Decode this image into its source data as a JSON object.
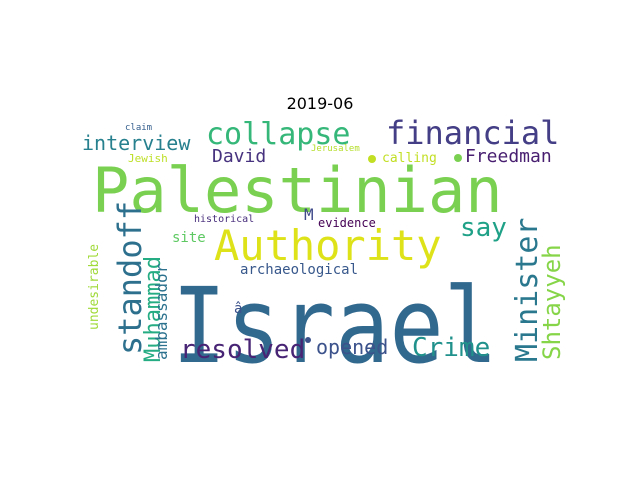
{
  "title": "2019-06",
  "words": [
    {
      "text": "Israel",
      "color": "#31688e"
    },
    {
      "text": "Palestinian",
      "color": "#7ad151"
    },
    {
      "text": "Authority",
      "color": "#dde318"
    },
    {
      "text": "financial",
      "color": "#433e85"
    },
    {
      "text": "collapse",
      "color": "#35b779"
    },
    {
      "text": "standoff",
      "color": "#2d708e"
    },
    {
      "text": "Minister",
      "color": "#2a788e"
    },
    {
      "text": "Shtayyeh",
      "color": "#86d549"
    },
    {
      "text": "Muhammad",
      "color": "#25ac82"
    },
    {
      "text": "resolved",
      "color": "#482475"
    },
    {
      "text": "Crime",
      "color": "#21918c"
    },
    {
      "text": "opened",
      "color": "#3b528b"
    },
    {
      "text": "say",
      "color": "#1fa187"
    },
    {
      "text": "interview",
      "color": "#27808e"
    },
    {
      "text": "David",
      "color": "#46327e"
    },
    {
      "text": "Freedman",
      "color": "#481f70"
    },
    {
      "text": "ambassador",
      "color": "#2c728e"
    },
    {
      "text": "archaeological",
      "color": "#38588c"
    },
    {
      "text": "M",
      "color": "#3e4a89"
    },
    {
      "text": "calling",
      "color": "#c2df23"
    },
    {
      "text": "evidence",
      "color": "#440154"
    },
    {
      "text": "site",
      "color": "#5ec962"
    },
    {
      "text": "undesirable",
      "color": "#a0da39"
    },
    {
      "text": "Jewish",
      "color": "#bddf26"
    },
    {
      "text": "Jerusalem",
      "color": "#b5de2b"
    },
    {
      "text": "claim",
      "color": "#355f8d"
    },
    {
      "text": "historical",
      "color": "#472d7b"
    },
    {
      "text": "â",
      "color": "#3b528b"
    }
  ]
}
